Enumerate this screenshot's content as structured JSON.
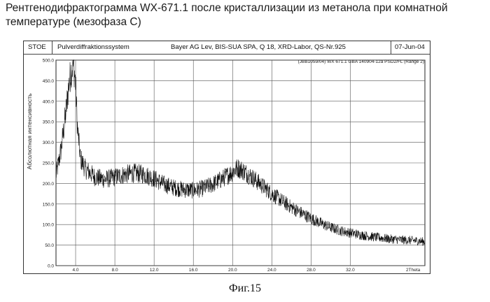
{
  "page": {
    "title": "Рентгенодифрактограмма WX-671.1 после кристаллизации из метанола при комнатной температуре (мезофаза С)",
    "caption": "Фиг.15"
  },
  "header": {
    "stoe": "STOE",
    "system": "Pulverdiffraktionssystem",
    "lab": "Bayer AG Lev, BIS-SUA SPA, Q 18, XRD-Labor, QS-Nr.925",
    "date": "07-Jun-04"
  },
  "chart_data": {
    "type": "line",
    "annotation": "(JBB1059/04) WX 671.1 GBA 140904-12a  PSD2/FL (Range 2)",
    "ylabel": "Абсолютная интенсивность",
    "xlabel": "2Theta",
    "xlim": [
      2.0,
      39.6
    ],
    "ylim": [
      0,
      500
    ],
    "xticks": [
      4.0,
      8.0,
      12.0,
      16.0,
      20.0,
      24.0,
      28.0,
      32.0
    ],
    "xtick_labels": [
      "4.0",
      "8.0",
      "12.0",
      "16.0",
      "20.0",
      "24.0",
      "28.0",
      "32.0",
      "2Theta"
    ],
    "yticks": [
      0,
      50,
      100,
      150,
      200,
      250,
      300,
      350,
      400,
      450,
      500
    ],
    "ytick_labels": [
      "0.0",
      "50.0",
      "100.0",
      "150.0",
      "200.0",
      "250.0",
      "300.0",
      "350.0",
      "400.0",
      "450.0",
      "500.0"
    ],
    "grid": true,
    "x": [
      2.0,
      2.5,
      3.0,
      3.3,
      3.6,
      3.8,
      4.0,
      4.2,
      4.5,
      5.0,
      5.5,
      6.0,
      7.0,
      8.0,
      9.0,
      10.0,
      11.0,
      12.0,
      13.0,
      14.0,
      15.0,
      16.0,
      17.0,
      18.0,
      19.0,
      20.0,
      20.5,
      21.0,
      22.0,
      23.0,
      24.0,
      25.0,
      26.0,
      27.0,
      28.0,
      29.0,
      30.0,
      31.0,
      32.0,
      33.0,
      34.0,
      35.0,
      36.0,
      37.0,
      38.0,
      39.0,
      39.6
    ],
    "y": [
      220,
      280,
      370,
      440,
      480,
      490,
      440,
      330,
      260,
      235,
      225,
      215,
      210,
      215,
      222,
      225,
      222,
      212,
      198,
      190,
      185,
      183,
      188,
      198,
      212,
      228,
      238,
      232,
      215,
      195,
      175,
      158,
      142,
      128,
      115,
      103,
      93,
      85,
      80,
      75,
      71,
      68,
      65,
      63,
      62,
      60,
      58
    ]
  }
}
